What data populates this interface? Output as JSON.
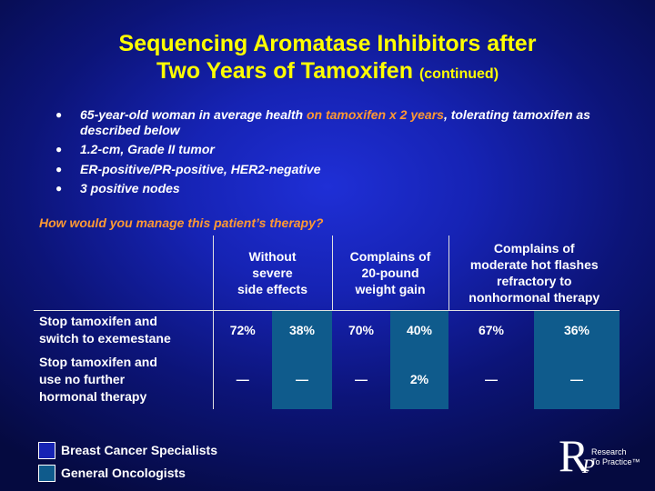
{
  "title": {
    "line1": "Sequencing Aromatase Inhibitors after",
    "line2": "Two Years of Tamoxifen",
    "suffix": "(continued)"
  },
  "bullets": [
    {
      "pre": "65-year-old woman in average health ",
      "highlight": "on tamoxifen x 2 years",
      "post": ", tolerating tamoxifen as described below"
    },
    {
      "pre": "1.2-cm, Grade II tumor",
      "highlight": "",
      "post": ""
    },
    {
      "pre": "ER-positive/PR-positive, HER2-negative",
      "highlight": "",
      "post": ""
    },
    {
      "pre": "3 positive nodes",
      "highlight": "",
      "post": ""
    }
  ],
  "bullet_glyph": "●",
  "highlight_color": "#ff9933",
  "question": "How would you manage this patient’s therapy?",
  "table": {
    "headers": [
      {
        "line1": "Without",
        "line2": "severe",
        "line3": "side effects",
        "line4": ""
      },
      {
        "line1": "Complains of",
        "line2": "20-pound",
        "line3": "weight gain",
        "line4": ""
      },
      {
        "line1": "Complains of",
        "line2": "moderate hot flashes",
        "line3": "refractory to",
        "line4": "nonhormonal therapy"
      }
    ],
    "rows": [
      {
        "label1": "Stop tamoxifen and",
        "label2": "switch to exemestane",
        "label3": "",
        "values": [
          "72%",
          "38%",
          "70%",
          "40%",
          "67%",
          "36%"
        ]
      },
      {
        "label1": "Stop tamoxifen and",
        "label2": "use no further",
        "label3": "hormonal therapy",
        "values": [
          "—",
          "—",
          "—",
          "2%",
          "—",
          "—"
        ]
      }
    ]
  },
  "legend": [
    {
      "label": "Breast Cancer Specialists",
      "color": "#1623b4"
    },
    {
      "label": "General Oncologists",
      "color": "#0f5b8c"
    }
  ],
  "logo": {
    "letter": "R",
    "subletter": "P",
    "line1": "Research",
    "line2": "To Practice™"
  }
}
